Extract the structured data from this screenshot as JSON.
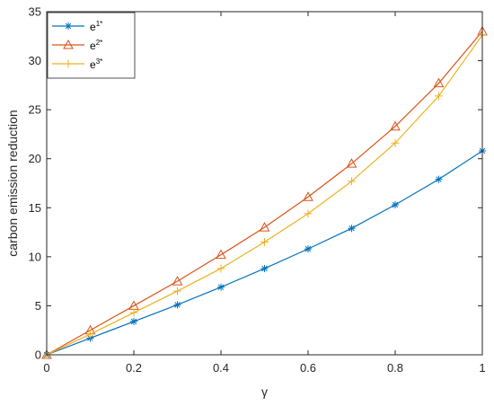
{
  "chart_data": {
    "type": "line",
    "xlabel": "γ",
    "ylabel": "carbon emission reduction",
    "xlim": [
      0,
      1
    ],
    "ylim": [
      0,
      35
    ],
    "x_ticks": [
      0,
      0.2,
      0.4,
      0.6,
      0.8,
      1
    ],
    "y_ticks": [
      0,
      5,
      10,
      15,
      20,
      25,
      30,
      35
    ],
    "x_tick_labels": [
      "0",
      "0.2",
      "0.4",
      "0.6",
      "0.8",
      "1"
    ],
    "y_tick_labels": [
      "0",
      "5",
      "10",
      "15",
      "20",
      "25",
      "30",
      "35"
    ],
    "grid": false,
    "legend_position": "top-left",
    "x": [
      0,
      0.1,
      0.2,
      0.3,
      0.4,
      0.5,
      0.6,
      0.7,
      0.8,
      0.9,
      1.0
    ],
    "series": [
      {
        "name": "e",
        "sup": "1*",
        "color": "#0072BD",
        "marker": "asterisk",
        "values": [
          0,
          1.7,
          3.4,
          5.1,
          6.9,
          8.8,
          10.8,
          12.9,
          15.3,
          17.9,
          20.8
        ]
      },
      {
        "name": "e",
        "sup": "2*",
        "color": "#D95319",
        "marker": "triangle",
        "values": [
          0,
          2.5,
          5.0,
          7.5,
          10.2,
          13.0,
          16.1,
          19.5,
          23.3,
          27.7,
          33.0
        ]
      },
      {
        "name": "e",
        "sup": "3*",
        "color": "#EDB120",
        "marker": "plus",
        "values": [
          0,
          2.1,
          4.3,
          6.5,
          8.8,
          11.5,
          14.4,
          17.7,
          21.6,
          26.4,
          32.6
        ]
      }
    ]
  }
}
